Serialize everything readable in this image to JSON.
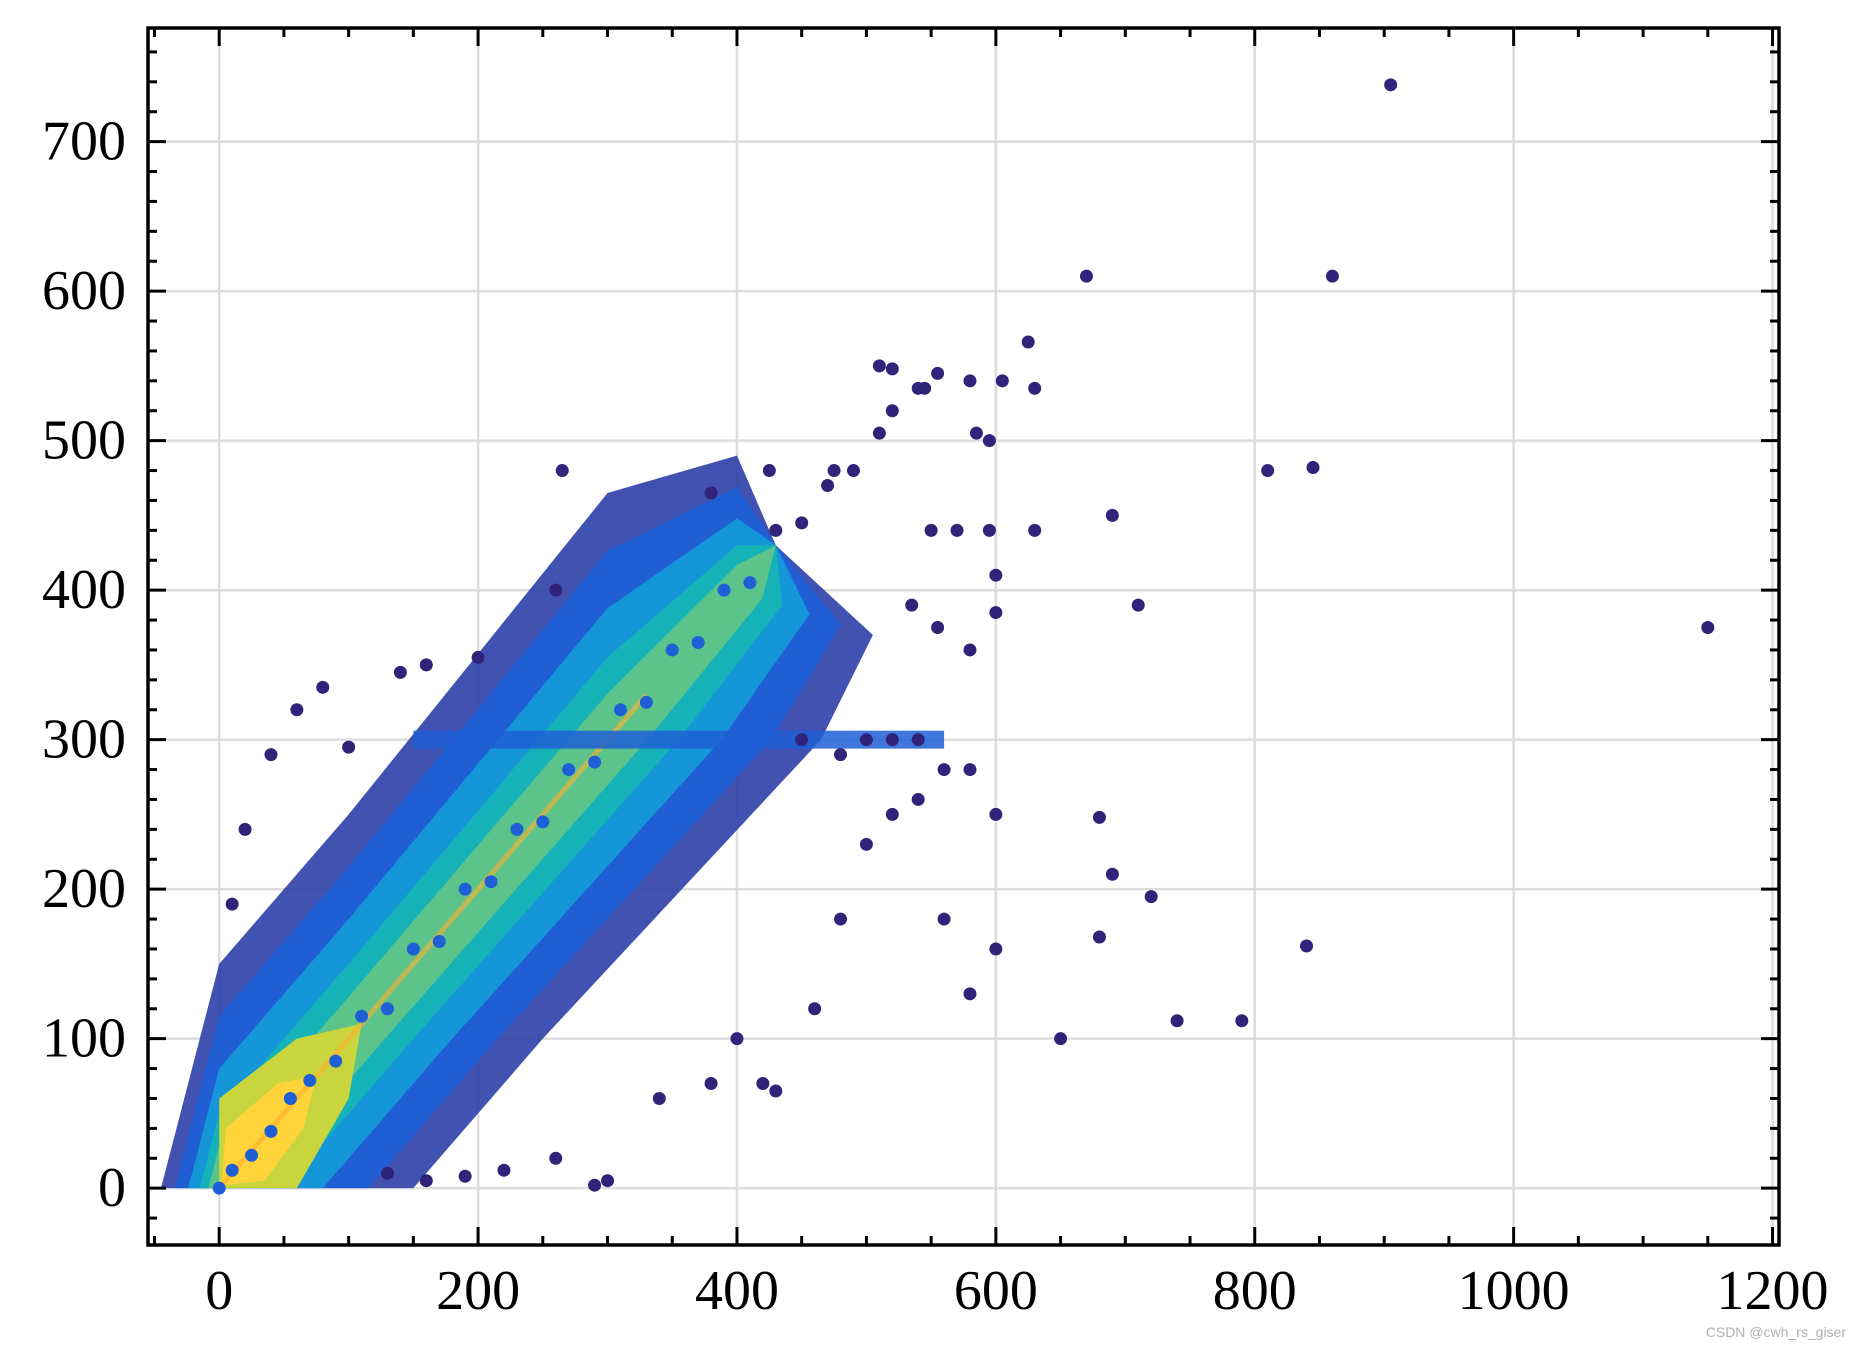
{
  "chart_data": {
    "type": "scatter",
    "title": "",
    "xlabel": "",
    "ylabel": "",
    "xlim": [
      -55,
      1205
    ],
    "ylim": [
      -38,
      776
    ],
    "x_ticks": [
      0,
      200,
      400,
      600,
      800,
      1000,
      1200
    ],
    "y_ticks": [
      0,
      100,
      200,
      300,
      400,
      500,
      600,
      700
    ],
    "x_tick_labels": [
      "0",
      "200",
      "400",
      "600",
      "800",
      "1000",
      "1200"
    ],
    "y_tick_labels": [
      "0",
      "100",
      "200",
      "300",
      "400",
      "500",
      "600",
      "700"
    ],
    "grid": true,
    "color_encoding": "point density (turbo-like colormap: dark blue low → cyan/green → yellow/orange high)",
    "colormap": [
      "#30247a",
      "#2d3fa8",
      "#1f5fd6",
      "#1596d8",
      "#15b3b8",
      "#5cc48a",
      "#c9d53d",
      "#ffd43a",
      "#ff9a2a"
    ],
    "density_ridge": "points concentrated along y ≈ x, densest near (0–100, 0–100)",
    "series": [
      {
        "points": [
          [
            0,
            0
          ],
          [
            10,
            12
          ],
          [
            25,
            22
          ],
          [
            40,
            38
          ],
          [
            55,
            60
          ],
          [
            70,
            72
          ],
          [
            90,
            85
          ],
          [
            110,
            115
          ],
          [
            130,
            120
          ],
          [
            150,
            160
          ],
          [
            170,
            165
          ],
          [
            190,
            200
          ],
          [
            210,
            205
          ],
          [
            230,
            240
          ],
          [
            250,
            245
          ],
          [
            270,
            280
          ],
          [
            290,
            285
          ],
          [
            310,
            320
          ],
          [
            330,
            325
          ],
          [
            350,
            360
          ],
          [
            370,
            365
          ],
          [
            390,
            400
          ],
          [
            410,
            405
          ],
          [
            430,
            440
          ],
          [
            450,
            445
          ],
          [
            470,
            470
          ],
          [
            490,
            480
          ],
          [
            510,
            505
          ],
          [
            520,
            520
          ],
          [
            540,
            535
          ],
          [
            10,
            190
          ],
          [
            20,
            240
          ],
          [
            40,
            290
          ],
          [
            60,
            320
          ],
          [
            80,
            335
          ],
          [
            100,
            295
          ],
          [
            140,
            345
          ],
          [
            160,
            350
          ],
          [
            200,
            355
          ],
          [
            260,
            400
          ],
          [
            130,
            10
          ],
          [
            160,
            5
          ],
          [
            190,
            8
          ],
          [
            220,
            12
          ],
          [
            260,
            20
          ],
          [
            290,
            2
          ],
          [
            300,
            5
          ],
          [
            340,
            60
          ],
          [
            380,
            70
          ],
          [
            400,
            100
          ],
          [
            420,
            70
          ],
          [
            430,
            65
          ],
          [
            460,
            120
          ],
          [
            480,
            180
          ],
          [
            500,
            230
          ],
          [
            520,
            250
          ],
          [
            540,
            260
          ],
          [
            560,
            180
          ],
          [
            580,
            130
          ],
          [
            600,
            160
          ],
          [
            450,
            300
          ],
          [
            480,
            290
          ],
          [
            500,
            300
          ],
          [
            520,
            300
          ],
          [
            540,
            300
          ],
          [
            560,
            280
          ],
          [
            580,
            280
          ],
          [
            600,
            250
          ],
          [
            650,
            100
          ],
          [
            680,
            168
          ],
          [
            680,
            248
          ],
          [
            690,
            210
          ],
          [
            720,
            195
          ],
          [
            740,
            112
          ],
          [
            790,
            112
          ],
          [
            840,
            162
          ],
          [
            265,
            480
          ],
          [
            380,
            465
          ],
          [
            425,
            480
          ],
          [
            475,
            480
          ],
          [
            510,
            550
          ],
          [
            520,
            548
          ],
          [
            545,
            535
          ],
          [
            555,
            545
          ],
          [
            580,
            540
          ],
          [
            605,
            540
          ],
          [
            625,
            566
          ],
          [
            630,
            535
          ],
          [
            585,
            505
          ],
          [
            595,
            500
          ],
          [
            550,
            440
          ],
          [
            570,
            440
          ],
          [
            595,
            440
          ],
          [
            630,
            440
          ],
          [
            600,
            410
          ],
          [
            600,
            385
          ],
          [
            535,
            390
          ],
          [
            555,
            375
          ],
          [
            580,
            360
          ],
          [
            690,
            450
          ],
          [
            710,
            390
          ],
          [
            810,
            480
          ],
          [
            845,
            482
          ],
          [
            860,
            610
          ],
          [
            670,
            610
          ],
          [
            905,
            738
          ],
          [
            1150,
            375
          ]
        ]
      }
    ]
  },
  "watermark": "CSDN @cwh_rs_giser"
}
